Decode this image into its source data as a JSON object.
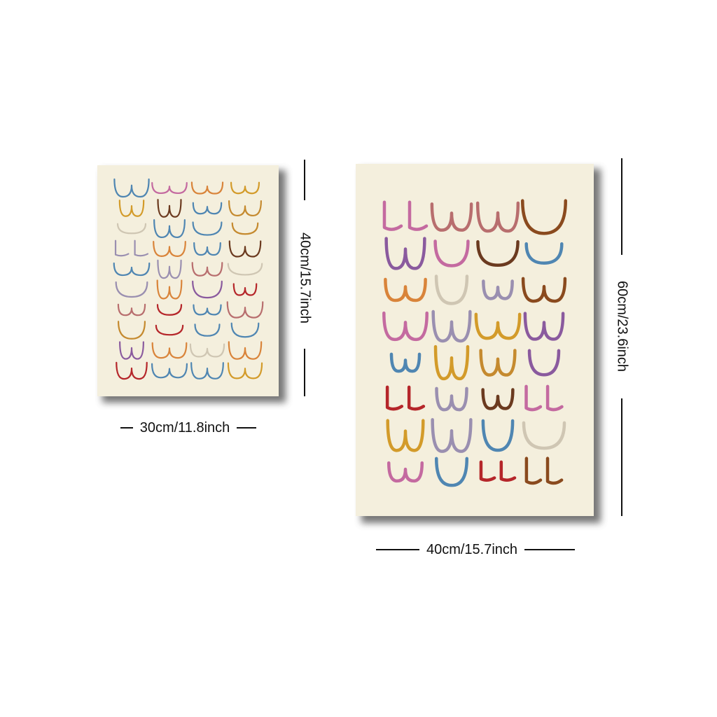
{
  "small_canvas": {
    "width_label": "30cm/11.8inch",
    "height_label": "40cm/15.7inch",
    "artwork": "line-drawing-pattern-small"
  },
  "large_canvas": {
    "width_label": "40cm/15.7inch",
    "height_label": "60cm/23.6inch",
    "artwork": "line-drawing-pattern-large"
  },
  "colors": {
    "background": "#ffffff",
    "canvas": "#f4efdd",
    "dimension_line": "#111111",
    "palette": [
      "#b5262a",
      "#8a4a1e",
      "#c58a2f",
      "#d39b2a",
      "#4f86b2",
      "#8a5a9e",
      "#c46aa0",
      "#cfc6b3",
      "#b86e6e",
      "#9a8fb0",
      "#6b3a1f",
      "#d9843a"
    ]
  }
}
